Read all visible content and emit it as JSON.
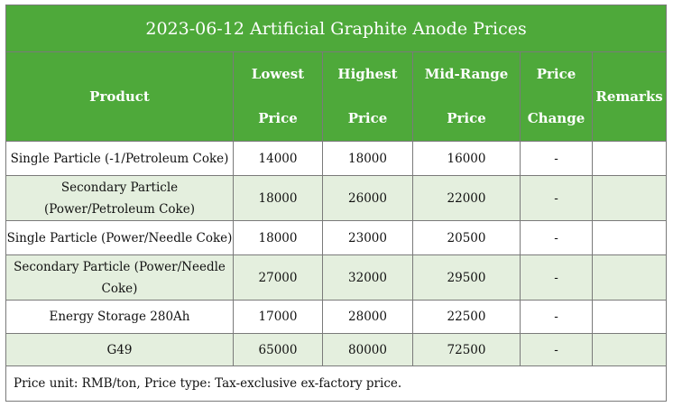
{
  "title": "2023-06-12 Artificial Graphite Anode Prices",
  "headers": {
    "product": "Product",
    "lowest": [
      "Lowest",
      "Price"
    ],
    "highest": [
      "Highest",
      "Price"
    ],
    "mid": [
      "Mid-Range",
      "Price"
    ],
    "change": [
      "Price",
      "Change"
    ],
    "remarks": "Remarks"
  },
  "rows": [
    {
      "product": "Single Particle (-1/Petroleum Coke)",
      "lowest": "14000",
      "highest": "18000",
      "mid": "16000",
      "change": "-",
      "remarks": ""
    },
    {
      "product": "Secondary Particle (Power/Petroleum Coke)",
      "lowest": "18000",
      "highest": "26000",
      "mid": "22000",
      "change": "-",
      "remarks": ""
    },
    {
      "product": "Single Particle (Power/Needle Coke)",
      "lowest": "18000",
      "highest": "23000",
      "mid": "20500",
      "change": "-",
      "remarks": ""
    },
    {
      "product": "Secondary Particle (Power/Needle Coke)",
      "lowest": "27000",
      "highest": "32000",
      "mid": "29500",
      "change": "-",
      "remarks": ""
    },
    {
      "product": "Energy Storage 280Ah",
      "lowest": "17000",
      "highest": "28000",
      "mid": "22500",
      "change": "-",
      "remarks": ""
    },
    {
      "product": "G49",
      "lowest": "65000",
      "highest": "80000",
      "mid": "72500",
      "change": "-",
      "remarks": ""
    }
  ],
  "footnote": "Price unit: RMB/ton, Price type: Tax-exclusive ex-factory price.",
  "colors": {
    "header_green": "#4ea93a",
    "row_alt_green": "#e4efde",
    "border": "#7a7a7a"
  }
}
